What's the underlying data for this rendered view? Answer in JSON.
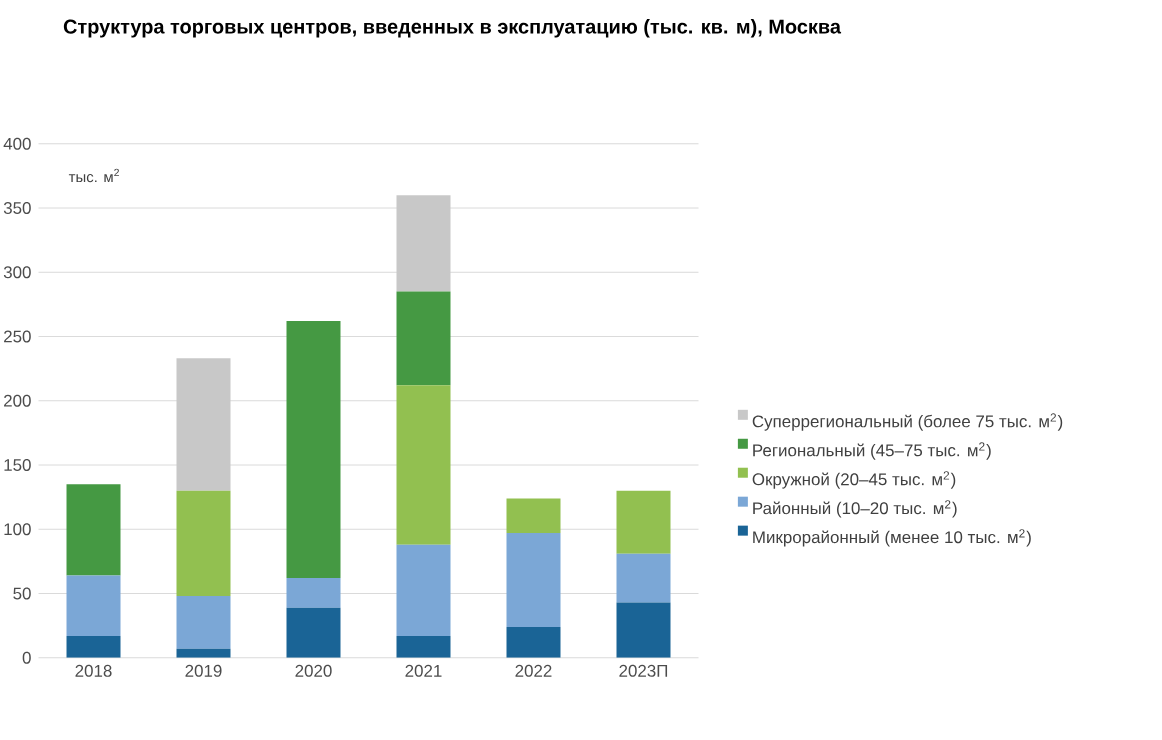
{
  "chart_data": {
    "type": "bar",
    "stacked": true,
    "title": "Структура торговых центров, введенных в эксплуатацию (тыс. кв. м), Москва",
    "ylabel": "тыс. м$^{2}$",
    "categories": [
      "2018",
      "2019",
      "2020",
      "2021",
      "2022",
      "2023П"
    ],
    "series": [
      {
        "name": "Микрорайонный (менее 10 тыс. м$^{2}$)",
        "color": "#1a6496",
        "values": [
          17,
          7,
          39,
          17,
          24,
          43
        ]
      },
      {
        "name": "Районный (10–20 тыс. м$^{2}$)",
        "color": "#7ba7d6",
        "values": [
          47,
          41,
          23,
          71,
          73,
          38
        ]
      },
      {
        "name": "Окружной (20–45 тыс. м$^{2}$)",
        "color": "#92c050",
        "values": [
          0,
          82,
          0,
          124,
          27,
          49
        ]
      },
      {
        "name": "Региональный (45–75 тыс. м$^{2}$)",
        "color": "#459943",
        "values": [
          71,
          0,
          200,
          73,
          0,
          0
        ]
      },
      {
        "name": "Суперрегиональный (более 75 тыс. м$^{2}$)",
        "color": "#c8c8c8",
        "values": [
          0,
          103,
          0,
          75,
          0,
          0
        ]
      }
    ],
    "ylim": [
      0,
      400
    ],
    "yticks": [
      0,
      50,
      100,
      150,
      200,
      250,
      300,
      350,
      400
    ],
    "grid": "y",
    "legend": "right"
  }
}
